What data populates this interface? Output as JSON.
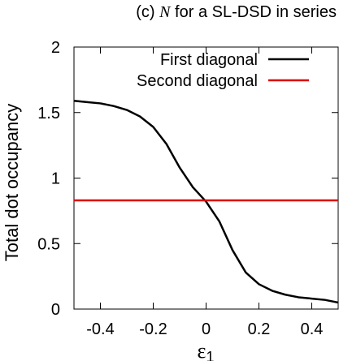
{
  "chart_data": {
    "type": "line",
    "title_prefix": "(c) ",
    "title_symbol": "N",
    "title_suffix": " for a SL-DSD in series",
    "xlabel_symbol": "ε",
    "xlabel_subscript": "1",
    "ylabel": "Total dot occupancy",
    "xlim": [
      -0.5,
      0.5
    ],
    "ylim": [
      0,
      2
    ],
    "xticks": [
      -0.4,
      -0.2,
      0,
      0.2,
      0.4
    ],
    "xtick_labels": [
      "-0.4",
      "-0.2",
      "0",
      "0.2",
      "0.4"
    ],
    "yticks": [
      0,
      0.5,
      1,
      1.5,
      2
    ],
    "ytick_labels": [
      "0",
      "0.5",
      "1",
      "1.5",
      "2"
    ],
    "legend_position": "top-right",
    "grid": false,
    "series": [
      {
        "name": "First diagonal",
        "color": "#000000",
        "x": [
          -0.5,
          -0.45,
          -0.4,
          -0.35,
          -0.3,
          -0.25,
          -0.2,
          -0.15,
          -0.1,
          -0.05,
          0,
          0.05,
          0.1,
          0.15,
          0.2,
          0.25,
          0.3,
          0.35,
          0.4,
          0.45,
          0.5
        ],
        "y": [
          1.59,
          1.58,
          1.57,
          1.55,
          1.52,
          1.47,
          1.39,
          1.26,
          1.08,
          0.93,
          0.82,
          0.67,
          0.45,
          0.28,
          0.19,
          0.14,
          0.11,
          0.09,
          0.08,
          0.07,
          0.05
        ]
      },
      {
        "name": "Second diagonal",
        "color": "#dd0000",
        "x": [
          -0.5,
          0.5
        ],
        "y": [
          0.83,
          0.83
        ]
      }
    ]
  }
}
